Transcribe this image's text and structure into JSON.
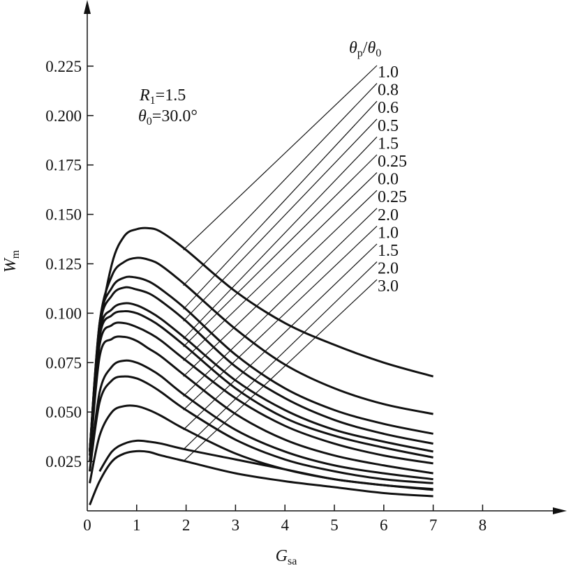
{
  "chart_data": {
    "type": "line",
    "title": "",
    "xlabel": "G",
    "xlabel_sub": "sa",
    "ylabel": "W",
    "ylabel_sub": "m",
    "xlim": [
      0,
      8
    ],
    "ylim": [
      0,
      0.25
    ],
    "xticks": [
      "0",
      "1",
      "2",
      "3",
      "4",
      "5",
      "6",
      "7",
      "8"
    ],
    "xtick_values": [
      0,
      1,
      2,
      3,
      4,
      5,
      6,
      7,
      8
    ],
    "yticks": [
      "0.025",
      "0.050",
      "0.075",
      "0.100",
      "0.125",
      "0.150",
      "0.175",
      "0.200",
      "0.225"
    ],
    "ytick_values": [
      0.025,
      0.05,
      0.075,
      0.1,
      0.125,
      0.15,
      0.175,
      0.2,
      0.225
    ],
    "grid": false,
    "annotations": {
      "r1": "R1=1.5",
      "r1_main": "R",
      "r1_sub": "1",
      "r1_val": "=1.5",
      "theta0_main": "θ",
      "theta0_sub": "0",
      "theta0_val": "=30.0°"
    },
    "legend_title": {
      "a": "θ",
      "a_sub": "p",
      "slash": "/",
      "b": "θ",
      "b_sub": "0"
    },
    "x": [
      0.05,
      0.25,
      0.5,
      0.75,
      1,
      1.25,
      1.5,
      2,
      3,
      4,
      5,
      6,
      7
    ],
    "series": [
      {
        "name": "1.0",
        "values": [
          0.03,
          0.09,
          0.125,
          0.139,
          0.1425,
          0.143,
          0.141,
          0.132,
          0.111,
          0.095,
          0.084,
          0.075,
          0.068
        ]
      },
      {
        "name": "0.8",
        "values": [
          0.03,
          0.095,
          0.119,
          0.126,
          0.128,
          0.127,
          0.124,
          0.114,
          0.092,
          0.074,
          0.062,
          0.054,
          0.049
        ]
      },
      {
        "name": "0.6",
        "values": [
          0.03,
          0.095,
          0.113,
          0.118,
          0.118,
          0.116,
          0.112,
          0.102,
          0.079,
          0.062,
          0.051,
          0.044,
          0.039
        ]
      },
      {
        "name": "0.5",
        "values": [
          0.03,
          0.093,
          0.109,
          0.113,
          0.112,
          0.11,
          0.106,
          0.096,
          0.073,
          0.057,
          0.046,
          0.039,
          0.034
        ]
      },
      {
        "name": "1.5",
        "values": [
          0.03,
          0.09,
          0.102,
          0.105,
          0.104,
          0.101,
          0.097,
          0.087,
          0.066,
          0.051,
          0.041,
          0.035,
          0.03
        ]
      },
      {
        "name": "0.25",
        "values": [
          0.03,
          0.088,
          0.099,
          0.101,
          0.1,
          0.097,
          0.093,
          0.083,
          0.062,
          0.047,
          0.038,
          0.032,
          0.027
        ]
      },
      {
        "name": "0.0",
        "values": [
          0.028,
          0.084,
          0.094,
          0.095,
          0.093,
          0.09,
          0.086,
          0.076,
          0.057,
          0.043,
          0.034,
          0.028,
          0.024
        ]
      },
      {
        "name": "0.25",
        "values": [
          0.025,
          0.078,
          0.087,
          0.088,
          0.086,
          0.082,
          0.078,
          0.068,
          0.049,
          0.036,
          0.028,
          0.023,
          0.019
        ]
      },
      {
        "name": "2.0",
        "values": [
          0.02,
          0.06,
          0.073,
          0.076,
          0.075,
          0.072,
          0.068,
          0.058,
          0.041,
          0.03,
          0.023,
          0.019,
          0.016
        ]
      },
      {
        "name": "1.0",
        "values": [
          0.02,
          0.055,
          0.066,
          0.068,
          0.067,
          0.064,
          0.06,
          0.051,
          0.036,
          0.026,
          0.02,
          0.016,
          0.014
        ]
      },
      {
        "name": "1.5",
        "values": [
          0.014,
          0.038,
          0.05,
          0.053,
          0.053,
          0.051,
          0.048,
          0.041,
          0.029,
          0.021,
          0.016,
          0.013,
          0.011
        ]
      },
      {
        "name": "2.0",
        "values": [
          null,
          0.02,
          0.03,
          0.034,
          0.0355,
          0.035,
          0.034,
          0.031,
          0.026,
          0.021,
          0.016,
          0.013,
          0.0106
        ]
      },
      {
        "name": "3.0",
        "values": [
          0.003,
          0.015,
          0.025,
          0.029,
          0.0302,
          0.0298,
          0.028,
          0.025,
          0.019,
          0.015,
          0.012,
          0.009,
          0.0074
        ]
      }
    ]
  }
}
